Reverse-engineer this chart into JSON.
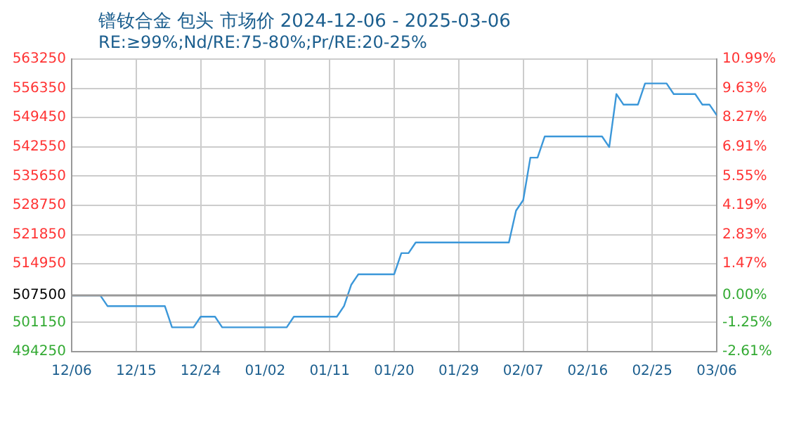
{
  "chart_data": {
    "type": "line",
    "title": "镨钕合金 包头 市场价 2024-12-06 - 2025-03-06",
    "subtitle": "RE:≥99%;Nd/RE:75-80%;Pr/RE:20-25%",
    "x": [
      "2024-12-06",
      "2024-12-10",
      "2024-12-11",
      "2024-12-19",
      "2024-12-20",
      "2024-12-23",
      "2024-12-24",
      "2024-12-26",
      "2024-12-27",
      "2025-01-05",
      "2025-01-06",
      "2025-01-12",
      "2025-01-13",
      "2025-01-14",
      "2025-01-15",
      "2025-01-20",
      "2025-01-21",
      "2025-01-22",
      "2025-01-23",
      "2025-02-05",
      "2025-02-06",
      "2025-02-07",
      "2025-02-08",
      "2025-02-09",
      "2025-02-10",
      "2025-02-18",
      "2025-02-19",
      "2025-02-20",
      "2025-02-21",
      "2025-02-23",
      "2025-02-24",
      "2025-02-27",
      "2025-02-28",
      "2025-03-03",
      "2025-03-04",
      "2025-03-05",
      "2025-03-06"
    ],
    "series": [
      {
        "color": "#3b97d9",
        "values": [
          507500,
          507500,
          505000,
          505000,
          500000,
          500000,
          502500,
          502500,
          500000,
          500000,
          502500,
          502500,
          505000,
          510000,
          512500,
          512500,
          517500,
          517500,
          520000,
          520000,
          527500,
          530000,
          540000,
          540000,
          545000,
          545000,
          542500,
          555000,
          552500,
          552500,
          557500,
          557500,
          555000,
          555000,
          552500,
          552500,
          550000
        ]
      }
    ],
    "xlim": [
      "2024-12-06",
      "2025-03-06"
    ],
    "xticks": [
      {
        "value": "2024-12-06",
        "label": "12/06"
      },
      {
        "value": "2024-12-15",
        "label": "12/15"
      },
      {
        "value": "2024-12-24",
        "label": "12/24"
      },
      {
        "value": "2025-01-02",
        "label": "01/02"
      },
      {
        "value": "2025-01-11",
        "label": "01/11"
      },
      {
        "value": "2025-01-20",
        "label": "01/20"
      },
      {
        "value": "2025-01-29",
        "label": "01/29"
      },
      {
        "value": "2025-02-07",
        "label": "02/07"
      },
      {
        "value": "2025-02-16",
        "label": "02/16"
      },
      {
        "value": "2025-02-25",
        "label": "02/25"
      },
      {
        "value": "2025-03-06",
        "label": "03/06"
      }
    ],
    "ylim": [
      494250,
      563250
    ],
    "yticks": [
      494250,
      501150,
      507500,
      514950,
      521850,
      528750,
      535650,
      542550,
      549450,
      556350,
      563250
    ],
    "y2lim": [
      -2.61,
      10.99
    ],
    "y2ticks": [
      {
        "value": -2.61,
        "label": "-2.61%"
      },
      {
        "value": -1.25,
        "label": "-1.25%"
      },
      {
        "value": 0,
        "label": "0.00%"
      },
      {
        "value": 1.47,
        "label": "1.47%"
      },
      {
        "value": 2.83,
        "label": "2.83%"
      },
      {
        "value": 4.19,
        "label": "4.19%"
      },
      {
        "value": 5.55,
        "label": "5.55%"
      },
      {
        "value": 6.91,
        "label": "6.91%"
      },
      {
        "value": 8.27,
        "label": "8.27%"
      },
      {
        "value": 9.63,
        "label": "9.63%"
      },
      {
        "value": 10.99,
        "label": "10.99%"
      }
    ],
    "ref_lines": [
      {
        "axis": "y",
        "value": 507500,
        "color": "#999999"
      }
    ],
    "grid": true,
    "legend": false,
    "marker": "none",
    "line_style": "solid"
  }
}
